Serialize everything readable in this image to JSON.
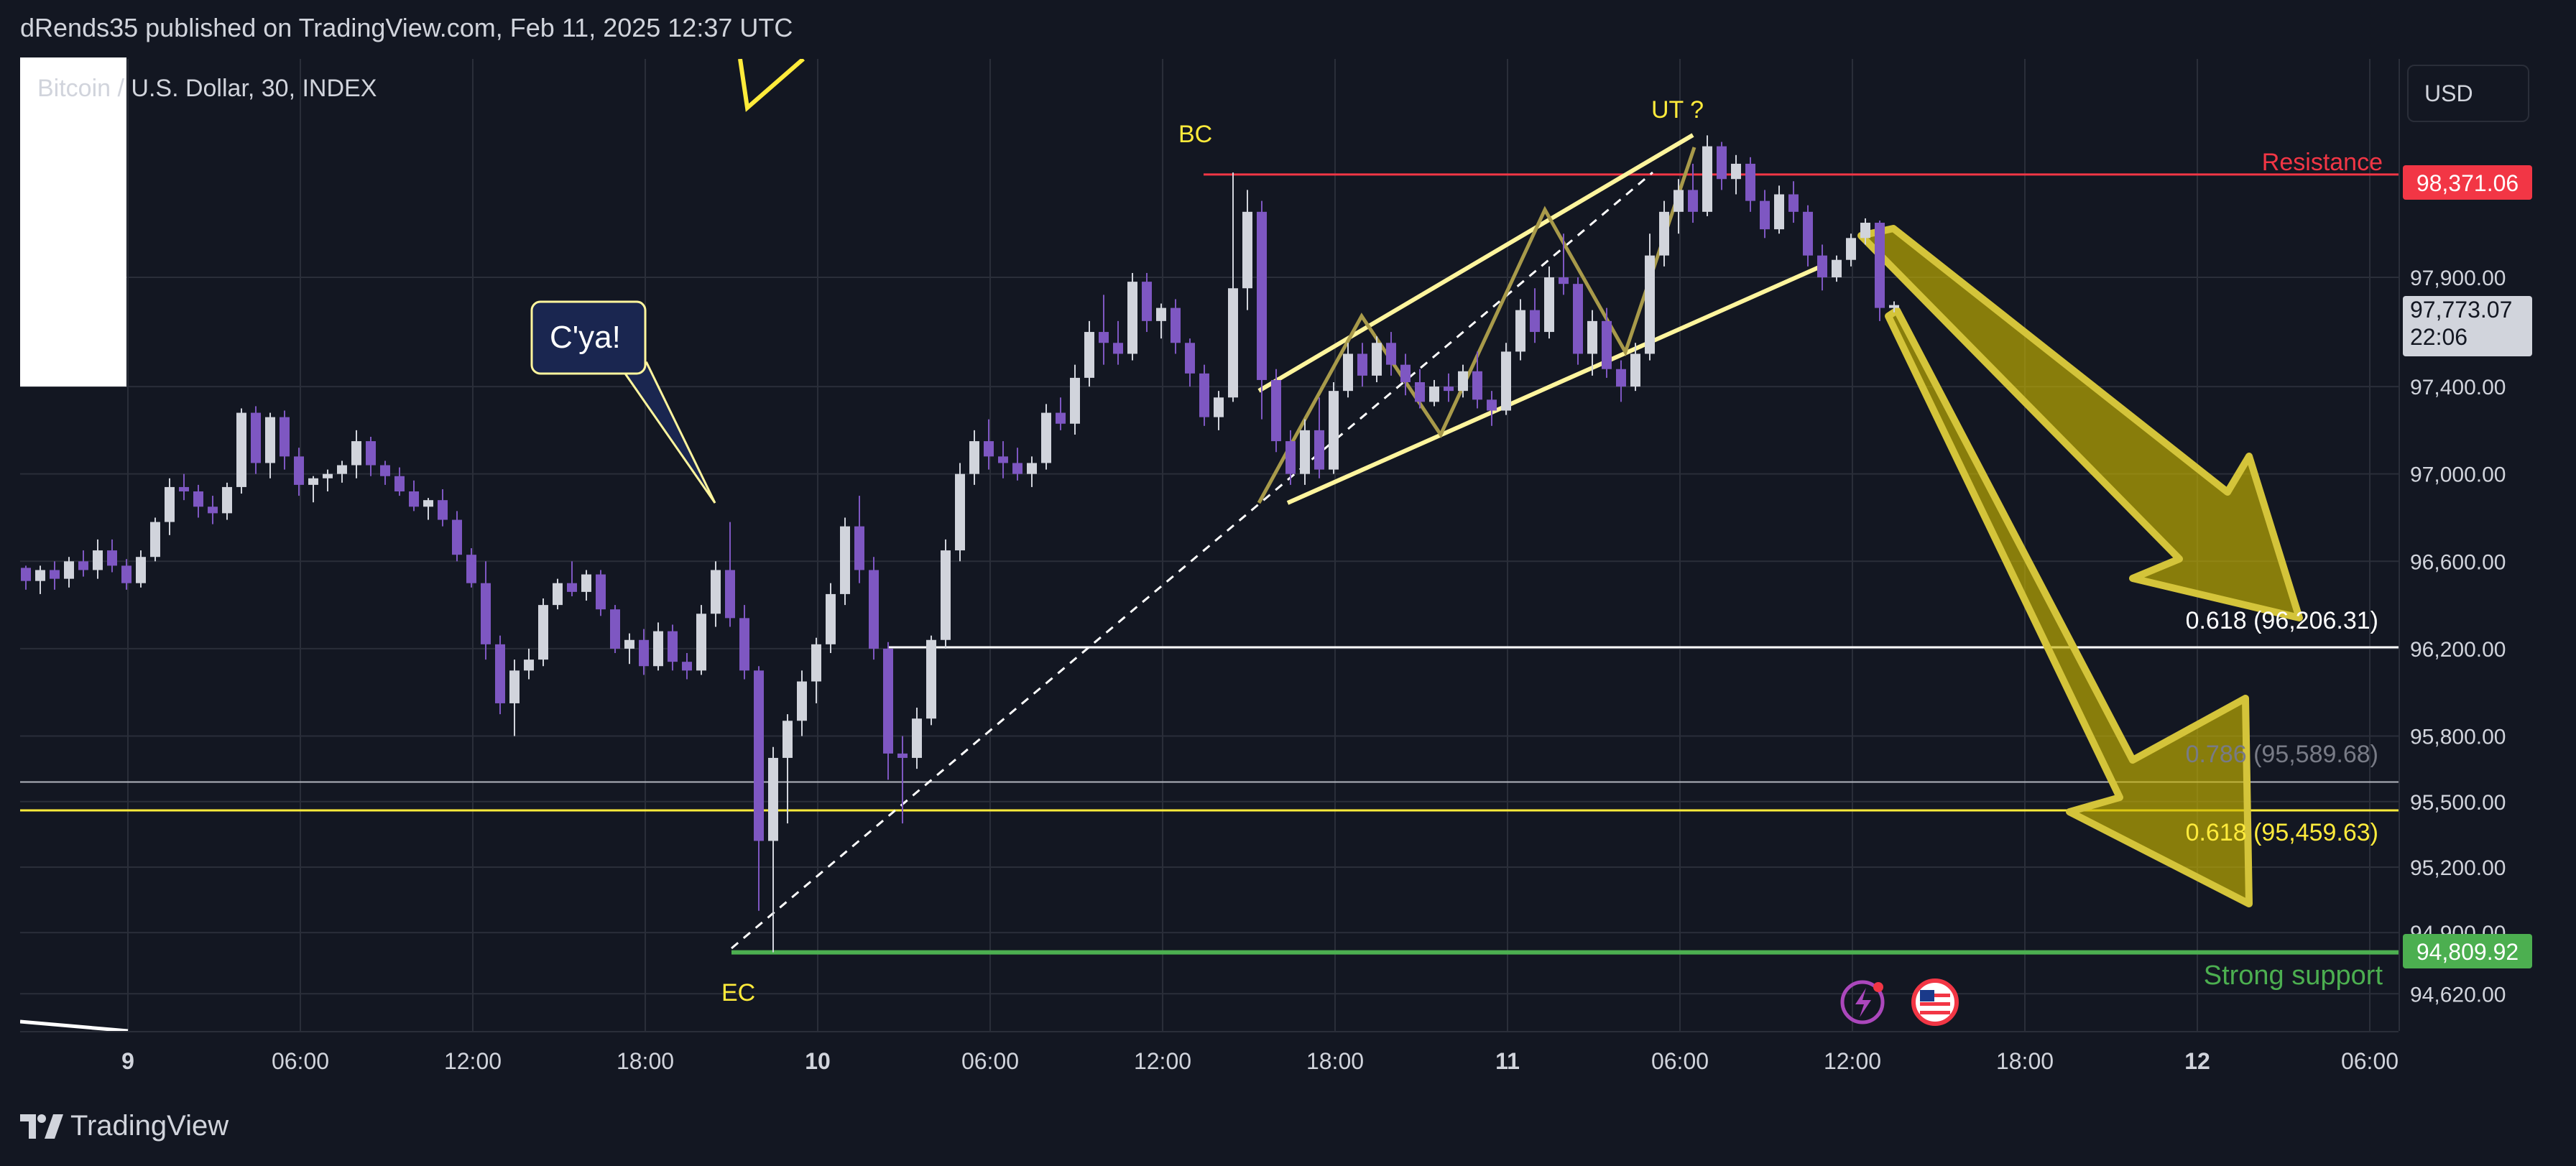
{
  "header": {
    "publisher": "dRends35 published on TradingView.com, Feb 11, 2025 12:37 UTC"
  },
  "symbol": "Bitcoin / U.S. Dollar, 30, INDEX",
  "currency_button": "USD",
  "footer": {
    "brand": "TradingView"
  },
  "colors": {
    "background": "#131722",
    "grid": "#2a2e39",
    "up_candle": "#d1d4dc",
    "down_candle": "#7e57c2",
    "resistance": "#f23645",
    "support": "#4caf50",
    "fib_yellow": "#ffeb3b",
    "arrow_fill": "#c8b400"
  },
  "annotations": {
    "bc": "BC",
    "ut": "UT ?",
    "ec": "EC",
    "cya": "C'ya!",
    "resistance": "Resistance",
    "strong_support": "Strong support",
    "fib1": "0.618 (96,206.31)",
    "fib2": "0.786 (95,589.68)",
    "fib3": "0.618 (95,459.63)"
  },
  "price_badges": {
    "resistance": "98,371.06",
    "current": "97,773.07",
    "countdown": "22:06",
    "support": "94,809.92"
  },
  "chart_data": {
    "type": "candlestick",
    "title": "Bitcoin / U.S. Dollar, 30, INDEX",
    "ylim": [
      94450,
      98900
    ],
    "y_ticks": [
      "97,900.00",
      "97,400.00",
      "97,000.00",
      "96,600.00",
      "96,200.00",
      "95,800.00",
      "95,500.00",
      "95,200.00",
      "94,900.00",
      "94,620.00"
    ],
    "x_ticks": [
      "9",
      "06:00",
      "12:00",
      "18:00",
      "10",
      "06:00",
      "12:00",
      "18:00",
      "11",
      "06:00",
      "12:00",
      "18:00",
      "12",
      "06:00"
    ],
    "x_tick_bold": [
      "9",
      "10",
      "11",
      "12"
    ],
    "bars_per_tick": 12,
    "candles": [
      [
        96570,
        96580,
        96470,
        96510
      ],
      [
        96510,
        96580,
        96450,
        96560
      ],
      [
        96560,
        96600,
        96470,
        96520
      ],
      [
        96520,
        96620,
        96480,
        96600
      ],
      [
        96600,
        96650,
        96530,
        96560
      ],
      [
        96560,
        96700,
        96520,
        96650
      ],
      [
        96650,
        96700,
        96550,
        96580
      ],
      [
        96580,
        96610,
        96470,
        96500
      ],
      [
        96500,
        96650,
        96480,
        96620
      ],
      [
        96620,
        96800,
        96600,
        96780
      ],
      [
        96780,
        96980,
        96720,
        96940
      ],
      [
        96940,
        97000,
        96880,
        96920
      ],
      [
        96920,
        96950,
        96800,
        96850
      ],
      [
        96850,
        96900,
        96770,
        96820
      ],
      [
        96820,
        96960,
        96790,
        96940
      ],
      [
        96940,
        97300,
        96910,
        97280
      ],
      [
        97280,
        97310,
        97000,
        97050
      ],
      [
        97050,
        97280,
        96980,
        97260
      ],
      [
        97260,
        97290,
        97020,
        97080
      ],
      [
        97080,
        97120,
        96900,
        96950
      ],
      [
        96950,
        96990,
        96870,
        96980
      ],
      [
        96980,
        97020,
        96920,
        97000
      ],
      [
        97000,
        97060,
        96960,
        97040
      ],
      [
        97040,
        97200,
        96980,
        97150
      ],
      [
        97150,
        97170,
        96990,
        97040
      ],
      [
        97040,
        97060,
        96950,
        96990
      ],
      [
        96990,
        97030,
        96900,
        96920
      ],
      [
        96920,
        96970,
        96830,
        96850
      ],
      [
        96850,
        96890,
        96790,
        96880
      ],
      [
        96880,
        96930,
        96760,
        96790
      ],
      [
        96790,
        96830,
        96600,
        96630
      ],
      [
        96630,
        96660,
        96480,
        96500
      ],
      [
        96500,
        96600,
        96150,
        96220
      ],
      [
        96220,
        96260,
        95900,
        95950
      ],
      [
        95950,
        96150,
        95800,
        96100
      ],
      [
        96100,
        96200,
        96060,
        96150
      ],
      [
        96150,
        96430,
        96120,
        96400
      ],
      [
        96400,
        96520,
        96380,
        96500
      ],
      [
        96500,
        96600,
        96440,
        96460
      ],
      [
        96460,
        96560,
        96420,
        96540
      ],
      [
        96540,
        96560,
        96350,
        96380
      ],
      [
        96380,
        96400,
        96180,
        96200
      ],
      [
        96200,
        96270,
        96130,
        96240
      ],
      [
        96240,
        96290,
        96080,
        96120
      ],
      [
        96120,
        96320,
        96100,
        96280
      ],
      [
        96280,
        96310,
        96100,
        96140
      ],
      [
        96140,
        96180,
        96060,
        96100
      ],
      [
        96100,
        96400,
        96080,
        96360
      ],
      [
        96360,
        96600,
        96300,
        96560
      ],
      [
        96560,
        96780,
        96300,
        96340
      ],
      [
        96340,
        96400,
        96060,
        96100
      ],
      [
        96100,
        96120,
        95000,
        95320
      ],
      [
        95320,
        95750,
        94810,
        95700
      ],
      [
        95700,
        95900,
        95400,
        95870
      ],
      [
        95870,
        96100,
        95800,
        96050
      ],
      [
        96050,
        96250,
        95950,
        96220
      ],
      [
        96220,
        96500,
        96180,
        96450
      ],
      [
        96450,
        96800,
        96400,
        96760
      ],
      [
        96760,
        96900,
        96500,
        96560
      ],
      [
        96560,
        96620,
        96150,
        96200
      ],
      [
        96200,
        96230,
        95600,
        95720
      ],
      [
        95720,
        95800,
        95400,
        95700
      ],
      [
        95700,
        95930,
        95650,
        95880
      ],
      [
        95880,
        96260,
        95850,
        96240
      ],
      [
        96240,
        96700,
        96200,
        96650
      ],
      [
        96650,
        97050,
        96600,
        97000
      ],
      [
        97000,
        97200,
        96950,
        97150
      ],
      [
        97150,
        97250,
        97020,
        97080
      ],
      [
        97080,
        97150,
        96980,
        97050
      ],
      [
        97050,
        97120,
        96970,
        97000
      ],
      [
        97000,
        97080,
        96940,
        97050
      ],
      [
        97050,
        97320,
        97020,
        97280
      ],
      [
        97280,
        97350,
        97200,
        97230
      ],
      [
        97230,
        97500,
        97180,
        97440
      ],
      [
        97440,
        97700,
        97400,
        97650
      ],
      [
        97650,
        97820,
        97500,
        97600
      ],
      [
        97600,
        97700,
        97500,
        97550
      ],
      [
        97550,
        97920,
        97520,
        97880
      ],
      [
        97880,
        97920,
        97650,
        97700
      ],
      [
        97700,
        97780,
        97620,
        97760
      ],
      [
        97760,
        97800,
        97550,
        97600
      ],
      [
        97600,
        97620,
        97400,
        97460
      ],
      [
        97460,
        97500,
        97220,
        97260
      ],
      [
        97260,
        97380,
        97200,
        97350
      ],
      [
        97350,
        98380,
        97330,
        97850
      ],
      [
        97850,
        98300,
        97750,
        98200
      ],
      [
        98200,
        98250,
        97250,
        97430
      ],
      [
        97430,
        97480,
        97100,
        97150
      ],
      [
        97150,
        97200,
        96950,
        97000
      ],
      [
        97000,
        97250,
        96950,
        97200
      ],
      [
        97200,
        97350,
        96980,
        97020
      ],
      [
        97020,
        97420,
        97000,
        97380
      ],
      [
        97380,
        97600,
        97350,
        97550
      ],
      [
        97550,
        97600,
        97400,
        97450
      ],
      [
        97450,
        97630,
        97420,
        97600
      ],
      [
        97600,
        97650,
        97450,
        97500
      ],
      [
        97500,
        97550,
        97360,
        97420
      ],
      [
        97420,
        97480,
        97300,
        97330
      ],
      [
        97330,
        97430,
        97310,
        97400
      ],
      [
        97400,
        97460,
        97330,
        97380
      ],
      [
        97380,
        97500,
        97350,
        97470
      ],
      [
        97470,
        97560,
        97300,
        97340
      ],
      [
        97340,
        97380,
        97220,
        97290
      ],
      [
        97290,
        97600,
        97270,
        97560
      ],
      [
        97560,
        97800,
        97520,
        97750
      ],
      [
        97750,
        97850,
        97600,
        97650
      ],
      [
        97650,
        97950,
        97620,
        97900
      ],
      [
        97900,
        98100,
        97820,
        97870
      ],
      [
        97870,
        97900,
        97500,
        97550
      ],
      [
        97550,
        97750,
        97450,
        97700
      ],
      [
        97700,
        97760,
        97440,
        97480
      ],
      [
        97480,
        97520,
        97330,
        97400
      ],
      [
        97400,
        97600,
        97380,
        97550
      ],
      [
        97550,
        98100,
        97520,
        98000
      ],
      [
        98000,
        98250,
        97950,
        98200
      ],
      [
        98200,
        98350,
        98100,
        98300
      ],
      [
        98300,
        98420,
        98150,
        98200
      ],
      [
        98200,
        98550,
        98180,
        98500
      ],
      [
        98500,
        98520,
        98300,
        98350
      ],
      [
        98350,
        98460,
        98280,
        98420
      ],
      [
        98420,
        98450,
        98200,
        98250
      ],
      [
        98250,
        98300,
        98080,
        98120
      ],
      [
        98120,
        98320,
        98100,
        98280
      ],
      [
        98280,
        98340,
        98150,
        98200
      ],
      [
        98200,
        98230,
        97950,
        98000
      ],
      [
        98000,
        98050,
        97840,
        97900
      ],
      [
        97900,
        98000,
        97880,
        97980
      ],
      [
        97980,
        98100,
        97950,
        98080
      ],
      [
        98080,
        98170,
        98050,
        98150
      ],
      [
        98150,
        98160,
        97700,
        97760
      ],
      [
        97760,
        97790,
        97740,
        97773
      ]
    ],
    "levels": [
      {
        "name": "Resistance",
        "price": 98371.06
      },
      {
        "name": "0.618",
        "price": 96206.31
      },
      {
        "name": "0.786",
        "price": 95589.68
      },
      {
        "name": "0.618",
        "price": 95459.63
      },
      {
        "name": "Strong support",
        "price": 94809.92
      }
    ]
  }
}
